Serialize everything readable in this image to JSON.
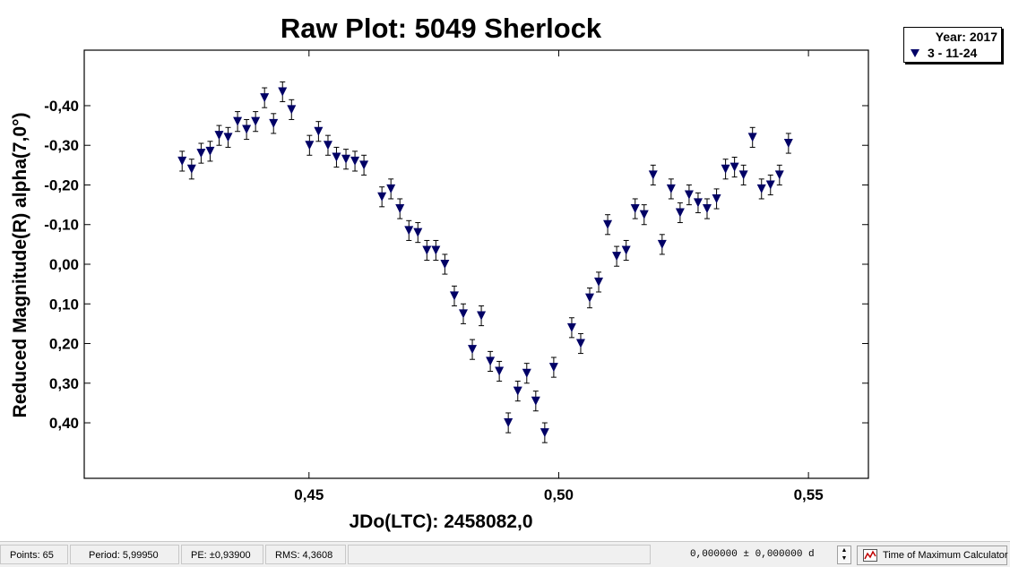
{
  "chart_data": {
    "type": "scatter",
    "title": "Raw Plot: 5049 Sherlock",
    "xlabel": "JDo(LTC): 2458082,0",
    "ylabel": "Reduced Magnitude(R) alpha(7,0°)",
    "xlim": [
      0.405,
      0.562
    ],
    "ylim": [
      0.54,
      -0.54
    ],
    "y_inverted": true,
    "x_ticks": [
      0.45,
      0.5,
      0.55
    ],
    "x_tick_labels": [
      "0,45",
      "0,50",
      "0,55"
    ],
    "y_ticks": [
      -0.4,
      -0.3,
      -0.2,
      -0.1,
      0.0,
      0.1,
      0.2,
      0.3,
      0.4
    ],
    "y_tick_labels": [
      "-0,40",
      "-0,30",
      "-0,20",
      "-0,10",
      "0,00",
      "0,10",
      "0,20",
      "0,30",
      "0,40"
    ],
    "grid": false,
    "legend": {
      "title": "Year: 2017",
      "placement": "top-right"
    },
    "series": [
      {
        "name": "3 - 11-24",
        "marker": "triangle-down",
        "color": "#000066",
        "error": 0.025,
        "x": [
          0.4246,
          0.4265,
          0.4284,
          0.4302,
          0.432,
          0.4338,
          0.4357,
          0.4375,
          0.4393,
          0.4411,
          0.4429,
          0.4447,
          0.4465,
          0.4501,
          0.4519,
          0.4538,
          0.4555,
          0.4574,
          0.4592,
          0.461,
          0.4646,
          0.4664,
          0.4682,
          0.47,
          0.4718,
          0.4736,
          0.4754,
          0.4772,
          0.4791,
          0.4809,
          0.4827,
          0.4845,
          0.4863,
          0.4881,
          0.4899,
          0.4918,
          0.4936,
          0.4954,
          0.4972,
          0.499,
          0.5026,
          0.5044,
          0.5062,
          0.508,
          0.5098,
          0.5116,
          0.5135,
          0.5153,
          0.5171,
          0.5189,
          0.5207,
          0.5225,
          0.5243,
          0.5261,
          0.5279,
          0.5297,
          0.5316,
          0.5334,
          0.5352,
          0.537,
          0.5388,
          0.5406,
          0.5424,
          0.5442,
          0.546
        ],
        "y": [
          -0.26,
          -0.24,
          -0.28,
          -0.285,
          -0.325,
          -0.32,
          -0.36,
          -0.34,
          -0.36,
          -0.42,
          -0.355,
          -0.435,
          -0.39,
          -0.3,
          -0.335,
          -0.3,
          -0.27,
          -0.265,
          -0.26,
          -0.25,
          -0.17,
          -0.19,
          -0.14,
          -0.085,
          -0.08,
          -0.035,
          -0.035,
          0.0,
          0.08,
          0.125,
          0.215,
          0.13,
          0.245,
          0.27,
          0.4,
          0.32,
          0.275,
          0.345,
          0.425,
          0.26,
          0.16,
          0.2,
          0.085,
          0.045,
          -0.1,
          -0.02,
          -0.035,
          -0.14,
          -0.125,
          -0.225,
          -0.05,
          -0.19,
          -0.13,
          -0.175,
          -0.155,
          -0.14,
          -0.165,
          -0.24,
          -0.245,
          -0.225,
          -0.32,
          -0.19,
          -0.2,
          -0.225,
          -0.305
        ]
      }
    ]
  },
  "status_bar": {
    "points": "Points: 65",
    "period": "Period: 5,99950",
    "pe": "PE: ±0,93900",
    "rms": "RMS: 4,3608",
    "time_of_max": "0,000000  ±  0,000000 d",
    "calc_button": "Time of Maximum Calculator"
  }
}
